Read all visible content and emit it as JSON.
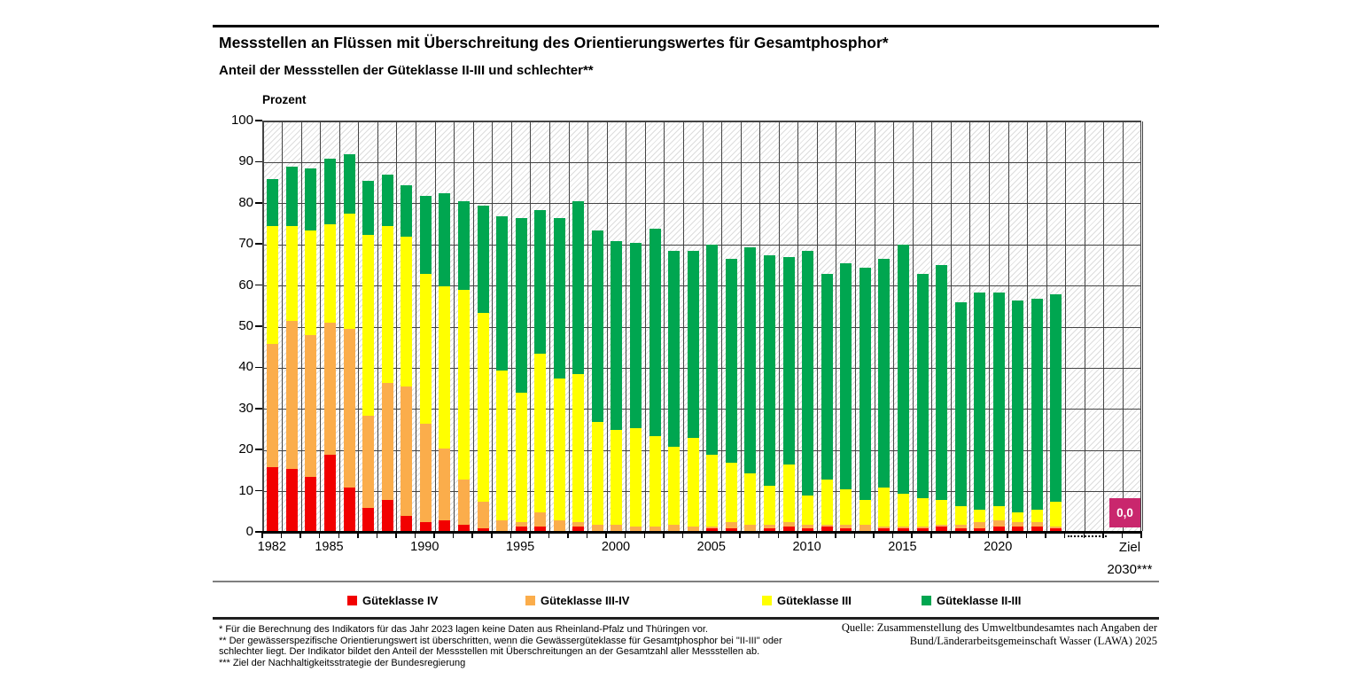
{
  "page": {
    "title": "Messstellen an Flüssen mit Überschreitung des Orientierungswertes für Gesamtphosphor*",
    "subtitle": "Anteil der Messstellen der Güteklasse II-III und schlechter**"
  },
  "chart_data": {
    "type": "bar",
    "stacked": true,
    "ylabel": "Prozent",
    "ylim": [
      0,
      100
    ],
    "ytick_step": 10,
    "grid": true,
    "legend_position": "bottom",
    "years": [
      1982,
      1983,
      1984,
      1985,
      1986,
      1987,
      1988,
      1989,
      1990,
      1991,
      1992,
      1993,
      1994,
      1995,
      1996,
      1997,
      1998,
      1999,
      2000,
      2001,
      2002,
      2003,
      2004,
      2005,
      2006,
      2007,
      2008,
      2009,
      2010,
      2011,
      2012,
      2013,
      2014,
      2015,
      2016,
      2017,
      2018,
      2019,
      2020,
      2021,
      2022,
      2023
    ],
    "xtick_labels": [
      "1982",
      "1985",
      "1990",
      "1995",
      "2000",
      "2005",
      "2010",
      "2015",
      "2020"
    ],
    "xtick_years": [
      1982,
      1985,
      1990,
      1995,
      2000,
      2005,
      2010,
      2015,
      2020
    ],
    "series": [
      {
        "name": "Güteklasse IV",
        "color": "#f20000",
        "values": [
          16,
          15.5,
          13.5,
          19,
          11,
          6,
          8,
          4,
          2.5,
          3,
          2,
          1,
          0.5,
          1.5,
          1.5,
          0.5,
          1.5,
          0.5,
          0.5,
          0.5,
          0.5,
          0.5,
          0.5,
          1,
          1,
          0.5,
          1,
          1.5,
          1,
          1.5,
          1,
          0.5,
          1,
          1,
          1,
          1.5,
          1,
          1,
          1.5,
          1.5,
          1.5,
          1
        ]
      },
      {
        "name": "Güteklasse III-IV",
        "color": "#fbad4b",
        "values": [
          30,
          36,
          34.5,
          32,
          38.5,
          22.5,
          28.5,
          31.5,
          24,
          17.5,
          11,
          6.5,
          2.5,
          1,
          3.5,
          2.5,
          1,
          1.5,
          1.5,
          1,
          1,
          1.5,
          1,
          0.5,
          1.5,
          1.5,
          1,
          1,
          1,
          0.5,
          1,
          1.5,
          0.5,
          0.5,
          0.5,
          0.5,
          1,
          1.5,
          1.5,
          1,
          1,
          0.5
        ]
      },
      {
        "name": "Güteklasse III",
        "color": "#ffff00",
        "values": [
          28.5,
          23,
          25.5,
          24,
          28,
          44,
          38,
          36.5,
          36.5,
          39.5,
          46,
          46,
          36.5,
          31.5,
          38.5,
          34.5,
          36,
          25,
          23,
          24,
          22,
          19,
          21.5,
          17.5,
          14.5,
          12.5,
          9.5,
          14,
          7,
          11,
          8.5,
          6,
          9.5,
          8,
          7,
          6,
          4.5,
          3,
          3.5,
          2.5,
          3,
          6
        ]
      },
      {
        "name": "Güteklasse II-III",
        "color": "#00a650",
        "values": [
          11.5,
          14.5,
          15,
          16,
          14.5,
          13,
          12.5,
          12.5,
          19,
          22.5,
          21.5,
          26,
          37.5,
          42.5,
          35,
          39,
          42,
          46.5,
          46,
          45,
          50.5,
          47.5,
          45.5,
          51,
          49.5,
          55,
          56,
          50.5,
          59.5,
          50,
          55,
          56.5,
          55.5,
          60.5,
          54.5,
          57,
          49.5,
          53,
          52,
          51.5,
          51.5,
          50.5
        ]
      }
    ],
    "target": {
      "value": 0.0,
      "value_label": "0,0",
      "axis_label_line1": "Ziel",
      "axis_label_line2": "2030***",
      "color": "#c9276d"
    }
  },
  "footnotes": [
    "* Für die Berechnung des Indikators für das Jahr 2023 lagen keine Daten aus Rheinland-Pfalz und Thüringen vor.",
    "** Der gewässerspezifische Orientierungswert ist überschritten, wenn die Gewässergüteklasse für Gesamtphosphor bei \"II-III\" oder schlechter liegt. Der Indikator bildet den Anteil der Messstellen mit Überschreitungen an der Gesamtzahl aller Messstellen ab.",
    "*** Ziel der Nachhaltigkeitsstrategie der Bundesregierung"
  ],
  "source": {
    "line1": "Quelle: Zusammenstellung des Umweltbundesamtes nach Angaben der",
    "line2": "Bund/Länderarbeitsgemeinschaft Wasser (LAWA) 2025"
  }
}
